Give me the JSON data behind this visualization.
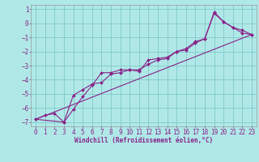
{
  "title": "Windchill (Refroidissement éolien,°C)",
  "bg_color": "#b0e8e8",
  "grid_color": "#80c8c8",
  "line_color": "#882288",
  "xlim": [
    -0.5,
    23.5
  ],
  "ylim": [
    -7.3,
    1.3
  ],
  "xticks": [
    0,
    1,
    2,
    3,
    4,
    5,
    6,
    7,
    8,
    9,
    10,
    11,
    12,
    13,
    14,
    15,
    16,
    17,
    18,
    19,
    20,
    21,
    22,
    23
  ],
  "yticks": [
    1,
    0,
    -1,
    -2,
    -3,
    -4,
    -5,
    -6,
    -7
  ],
  "line1_x": [
    0,
    1,
    2,
    3,
    4,
    5,
    6,
    7,
    8,
    9,
    10,
    11,
    12,
    13,
    14,
    15,
    16,
    17,
    18,
    19,
    20,
    21,
    22,
    23
  ],
  "line1_y": [
    -6.8,
    -6.5,
    -6.4,
    -7.0,
    -5.1,
    -4.7,
    -4.3,
    -4.2,
    -3.6,
    -3.5,
    -3.3,
    -3.3,
    -2.9,
    -2.6,
    -2.5,
    -2.0,
    -1.9,
    -1.4,
    -1.1,
    0.7,
    0.1,
    -0.3,
    -0.7,
    -0.8
  ],
  "line2_x": [
    0,
    3,
    4,
    5,
    6,
    7,
    8,
    9,
    10,
    11,
    12,
    13,
    14,
    15,
    16,
    17,
    18,
    19,
    20,
    21,
    22,
    23
  ],
  "line2_y": [
    -6.8,
    -7.0,
    -6.1,
    -5.2,
    -4.4,
    -3.5,
    -3.5,
    -3.3,
    -3.3,
    -3.4,
    -2.6,
    -2.5,
    -2.4,
    -2.0,
    -1.8,
    -1.3,
    -1.1,
    0.8,
    0.1,
    -0.3,
    -0.5,
    -0.8
  ],
  "line3_x": [
    0,
    23
  ],
  "line3_y": [
    -6.8,
    -0.8
  ],
  "marker": "D",
  "markersize": 2.0,
  "linewidth": 0.8,
  "tick_fontsize": 5.5,
  "xlabel_fontsize": 5.5
}
